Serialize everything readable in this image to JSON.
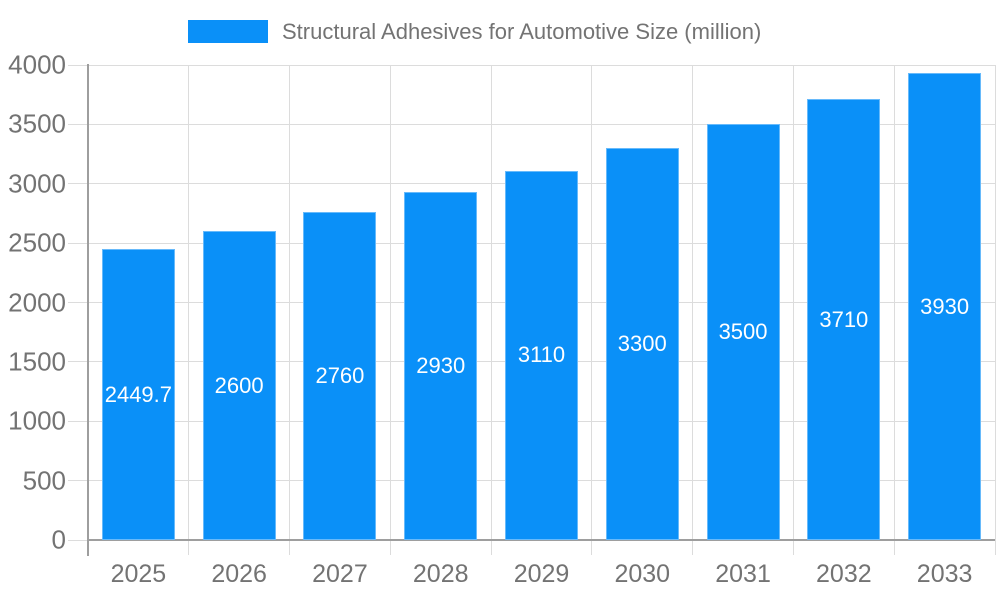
{
  "legend": {
    "label": "Structural Adhesives for Automotive Size (million)"
  },
  "chart_data": {
    "type": "bar",
    "title": "Structural Adhesives for Automotive Size (million)",
    "categories": [
      "2025",
      "2026",
      "2027",
      "2028",
      "2029",
      "2030",
      "2031",
      "2032",
      "2033"
    ],
    "values": [
      2449.7,
      2600,
      2760,
      2930,
      3110,
      3300,
      3500,
      3710,
      3930
    ],
    "value_labels": [
      "2449.7",
      "2600",
      "2760",
      "2930",
      "3110",
      "3300",
      "3500",
      "3710",
      "3930"
    ],
    "xlabel": "",
    "ylabel": "",
    "ylim": [
      0,
      4000
    ],
    "ytick_step": 500,
    "ytick_labels": [
      "0",
      "500",
      "1000",
      "1500",
      "2000",
      "2500",
      "3000",
      "3500",
      "4000"
    ],
    "grid": true,
    "legend_position": "top",
    "colors": {
      "bar": "#0a90f8",
      "grid": "#dcdcdc",
      "axis": "#9e9e9e",
      "tick_text": "#737373",
      "value_text": "#ffffff",
      "background": "#ffffff"
    }
  }
}
